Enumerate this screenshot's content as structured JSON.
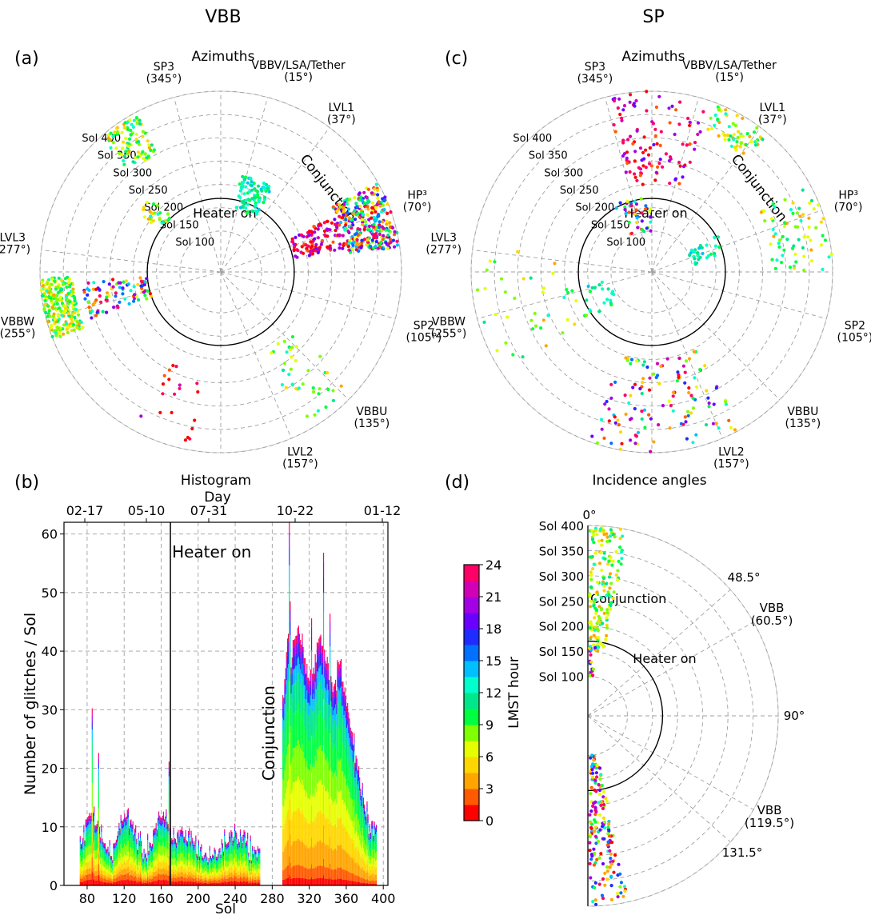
{
  "figure": {
    "column_titles": [
      "VBB",
      "SP"
    ]
  },
  "chart_data": [
    {
      "id": "a",
      "type": "scatter",
      "panel_label": "(a)",
      "title": "Azimuths",
      "projection": "polar",
      "radial_labels": [
        "Sol 100",
        "Sol 150",
        "Sol 200",
        "Sol 250",
        "Sol 300",
        "Sol 350",
        "Sol 400"
      ],
      "heater_on_label": "Heater on",
      "conjunction_label": "Conjunction",
      "directions": [
        {
          "name": "SP3",
          "deg": "(345°)",
          "azimuth": 345
        },
        {
          "name": "VBBV/LSA/Tether",
          "deg": "(15°)",
          "azimuth": 15
        },
        {
          "name": "LVL1",
          "deg": "(37°)",
          "azimuth": 37
        },
        {
          "name": "HP³",
          "deg": "(70°)",
          "azimuth": 70
        },
        {
          "name": "SP2",
          "deg": "(105°)",
          "azimuth": 105
        },
        {
          "name": "VBBU",
          "deg": "(135°)",
          "azimuth": 135
        },
        {
          "name": "LVL2",
          "deg": "(157°)",
          "azimuth": 157
        },
        {
          "name": "VBBW",
          "deg": "(255°)",
          "azimuth": 255
        },
        {
          "name": "LVL3",
          "deg": "(277°)",
          "azimuth": 277
        }
      ],
      "clusters": [
        {
          "azimuth_range": [
            60,
            82
          ],
          "sol_range": [
            290,
            400
          ],
          "color_mix": "all-hours",
          "n": 320
        },
        {
          "azimuth_range": [
            64,
            80
          ],
          "sol_range": [
            175,
            290
          ],
          "color_mix": "night",
          "n": 110
        },
        {
          "azimuth_range": [
            248,
            268
          ],
          "sol_range": [
            330,
            400
          ],
          "color_mix": "day",
          "n": 240
        },
        {
          "azimuth_range": [
            250,
            266
          ],
          "sol_range": [
            170,
            310
          ],
          "color_mix": "mixed",
          "n": 90
        },
        {
          "azimuth_range": [
            12,
            32
          ],
          "sol_range": [
            150,
            225
          ],
          "color_mix": "teal",
          "n": 90
        },
        {
          "azimuth_range": [
            318,
            332
          ],
          "sol_range": [
            300,
            395
          ],
          "color_mix": "day",
          "n": 90
        },
        {
          "azimuth_range": [
            305,
            318
          ],
          "sol_range": [
            170,
            230
          ],
          "color_mix": "day",
          "n": 25
        },
        {
          "azimuth_range": [
            130,
            152
          ],
          "sol_range": [
            200,
            390
          ],
          "color_mix": "day",
          "n": 40
        },
        {
          "azimuth_range": [
            190,
            210
          ],
          "sol_range": [
            230,
            390
          ],
          "color_mix": "night",
          "n": 20
        }
      ]
    },
    {
      "id": "b",
      "type": "bar",
      "stacked": true,
      "panel_label": "(b)",
      "title": "Histogram",
      "xlabel": "Sol",
      "ylabel": "Number of glitches / Sol",
      "top_axis_label": "Day",
      "top_ticks": [
        "02-17",
        "05-10",
        "07-31",
        "10-22",
        "01-12"
      ],
      "xticks": [
        80,
        120,
        160,
        200,
        240,
        280,
        320,
        360,
        400
      ],
      "yticks": [
        0,
        10,
        20,
        30,
        40,
        50,
        60
      ],
      "xlim": [
        55,
        405
      ],
      "ylim": [
        0,
        62
      ],
      "heater_on_sol": 170,
      "heater_on_label": "Heater on",
      "conjunction_label": "Conjunction",
      "sol_range": [
        72,
        392
      ],
      "gap_sols": [
        267,
        290
      ],
      "peaks": [
        [
          85,
          31
        ],
        [
          92,
          24
        ],
        [
          168,
          20
        ],
        [
          298,
          62
        ],
        [
          322,
          45
        ],
        [
          335,
          57
        ],
        [
          342,
          48
        ],
        [
          382,
          15
        ]
      ]
    },
    {
      "id": "c",
      "type": "scatter",
      "panel_label": "(c)",
      "title": "Azimuths",
      "projection": "polar",
      "radial_labels": [
        "Sol 100",
        "Sol 150",
        "Sol 200",
        "Sol 250",
        "Sol 300",
        "Sol 350",
        "Sol 400"
      ],
      "heater_on_label": "Heater on",
      "conjunction_label": "Conjunction",
      "directions": [
        {
          "name": "SP3",
          "deg": "(345°)",
          "azimuth": 345
        },
        {
          "name": "VBBV/LSA/Tether",
          "deg": "(15°)",
          "azimuth": 15
        },
        {
          "name": "LVL1",
          "deg": "(37°)",
          "azimuth": 37
        },
        {
          "name": "HP³",
          "deg": "(70°)",
          "azimuth": 70
        },
        {
          "name": "SP2",
          "deg": "(105°)",
          "azimuth": 105
        },
        {
          "name": "VBBU",
          "deg": "(135°)",
          "azimuth": 135
        },
        {
          "name": "LVL2",
          "deg": "(157°)",
          "azimuth": 157
        },
        {
          "name": "VBBW",
          "deg": "(255°)",
          "azimuth": 255
        },
        {
          "name": "LVL3",
          "deg": "(277°)",
          "azimuth": 277
        }
      ],
      "clusters": [
        {
          "azimuth_range": [
            345,
            360
          ],
          "sol_range": [
            200,
            400
          ],
          "color_mix": "night",
          "n": 60
        },
        {
          "azimuth_range": [
            0,
            20
          ],
          "sol_range": [
            200,
            400
          ],
          "color_mix": "night",
          "n": 50
        },
        {
          "azimuth_range": [
            20,
            40
          ],
          "sol_range": [
            330,
            395
          ],
          "color_mix": "day",
          "n": 60
        },
        {
          "azimuth_range": [
            60,
            90
          ],
          "sol_range": [
            270,
            400
          ],
          "color_mix": "day",
          "n": 70
        },
        {
          "azimuth_range": [
            60,
            80
          ],
          "sol_range": [
            100,
            175
          ],
          "color_mix": "teal",
          "n": 30
        },
        {
          "azimuth_range": [
            150,
            200
          ],
          "sol_range": [
            200,
            400
          ],
          "color_mix": "mixed",
          "n": 130
        },
        {
          "azimuth_range": [
            235,
            280
          ],
          "sol_range": [
            180,
            400
          ],
          "color_mix": "day",
          "n": 40
        },
        {
          "azimuth_range": [
            230,
            260
          ],
          "sol_range": [
            100,
            170
          ],
          "color_mix": "teal",
          "n": 20
        },
        {
          "azimuth_range": [
            330,
            360
          ],
          "sol_range": [
            100,
            180
          ],
          "color_mix": "mixed",
          "n": 40
        }
      ]
    },
    {
      "id": "d",
      "type": "scatter",
      "panel_label": "(d)",
      "title": "Incidence angles",
      "projection": "polar-half",
      "radial_labels": [
        "Sol 100",
        "Sol 150",
        "Sol 200",
        "Sol 250",
        "Sol 300",
        "Sol 350",
        "Sol 400"
      ],
      "heater_on_label": "Heater on",
      "conjunction_label": "Conjunction",
      "angle_labels": [
        {
          "text": "0°",
          "angle": 0
        },
        {
          "text": "48.5°",
          "angle": 48.5
        },
        {
          "text": "VBB",
          "sub": "(60.5°)",
          "angle": 60.5
        },
        {
          "text": "90°",
          "angle": 90
        },
        {
          "text": "VBB",
          "sub": "(119.5°)",
          "angle": 119.5
        },
        {
          "text": "131.5°",
          "angle": 131.5
        }
      ],
      "clusters": [
        {
          "angle_range": [
            0,
            12
          ],
          "sol_range": [
            150,
            400
          ],
          "color_mix": "day",
          "n": 170
        },
        {
          "angle_range": [
            0,
            5
          ],
          "sol_range": [
            100,
            160
          ],
          "color_mix": "mixed",
          "n": 20
        },
        {
          "angle_range": [
            168,
            180
          ],
          "sol_range": [
            100,
            400
          ],
          "color_mix": "mixed",
          "n": 170
        }
      ]
    }
  ],
  "colorbar": {
    "label": "LMST hour",
    "ticks": [
      0,
      3,
      6,
      9,
      12,
      15,
      18,
      21,
      24
    ],
    "range": [
      0,
      24
    ],
    "colors": [
      "#ff0000",
      "#ff5a00",
      "#ffa500",
      "#ffd700",
      "#e6ff00",
      "#7fff00",
      "#00ff40",
      "#00e68a",
      "#00ffcc",
      "#00bfff",
      "#0070ff",
      "#1e2cff",
      "#6a00ff",
      "#a300e6",
      "#d100b5",
      "#ff0066"
    ]
  }
}
